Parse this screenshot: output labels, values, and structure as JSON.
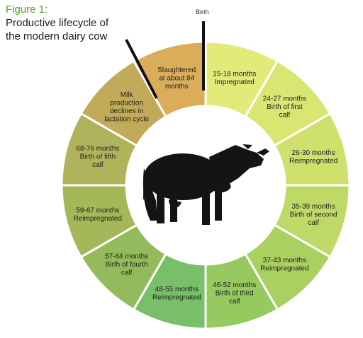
{
  "figure_label": "Figure 1:",
  "title_lines": [
    "Productive lifecycle of",
    "the modern dairy cow"
  ],
  "birth_label": "Birth",
  "stages": [
    {
      "lines": [
        "15-18 months",
        "Impregnated"
      ],
      "color": "#e3ea7a"
    },
    {
      "lines": [
        "24-27 months",
        "Birth of first",
        "calf"
      ],
      "color": "#d9e672"
    },
    {
      "lines": [
        "26-30 months",
        "Reimpregnated"
      ],
      "color": "#cfe06c"
    },
    {
      "lines": [
        "35-39 months",
        "Birth of second",
        "calf"
      ],
      "color": "#bfd966"
    },
    {
      "lines": [
        "37-43 months",
        "Reimpregnated"
      ],
      "color": "#a9d061"
    },
    {
      "lines": [
        "46-52 months",
        "Birth of third",
        "calf"
      ],
      "color": "#96c95f"
    },
    {
      "lines": [
        "48-55 months",
        "Reimpregnated"
      ],
      "color": "#79bf6a"
    },
    {
      "lines": [
        "57-64 months",
        "Birth of fourth",
        "calf"
      ],
      "color": "#93bb5c"
    },
    {
      "lines": [
        "59-67 months",
        "Reimpregnated"
      ],
      "color": "#a4b85a"
    },
    {
      "lines": [
        "68-76 months",
        "Birth of fifth",
        "calf"
      ],
      "color": "#b1b35c"
    },
    {
      "lines": [
        "Milk",
        "production",
        "declines in",
        "lactation cycle"
      ],
      "color": "#c2ab58"
    },
    {
      "lines": [
        "Slaughtered",
        "at about 84",
        "months"
      ],
      "color": "#dbad5a"
    }
  ]
}
